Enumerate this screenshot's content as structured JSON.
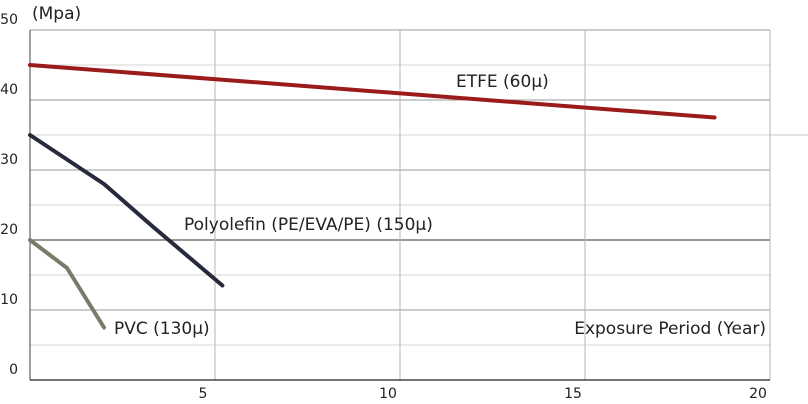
{
  "chart_data": {
    "type": "line",
    "title": "",
    "ylabel": "(Mpa)",
    "xlabel": "Exposure Period (Year)",
    "xlim": [
      0,
      20
    ],
    "ylim": [
      0,
      50
    ],
    "x_ticks": [
      "5",
      "10",
      "15",
      "20"
    ],
    "y_ticks": [
      "0",
      "10",
      "20",
      "30",
      "40",
      "50"
    ],
    "grid": true,
    "series": [
      {
        "name": "ETFE (60µ)",
        "color": "#9b1b1b",
        "x": [
          0,
          18.5
        ],
        "y": [
          45,
          37.5
        ]
      },
      {
        "name": "Polyolefin (PE/EVA/PE) (150µ)",
        "color": "#262a3a",
        "x": [
          0,
          2,
          3.3,
          5.2
        ],
        "y": [
          35,
          28,
          22,
          13.5
        ]
      },
      {
        "name": "PVC (130µ)",
        "color": "#7b7a68",
        "x": [
          0,
          1,
          2
        ],
        "y": [
          20,
          16,
          7.5
        ]
      }
    ]
  }
}
